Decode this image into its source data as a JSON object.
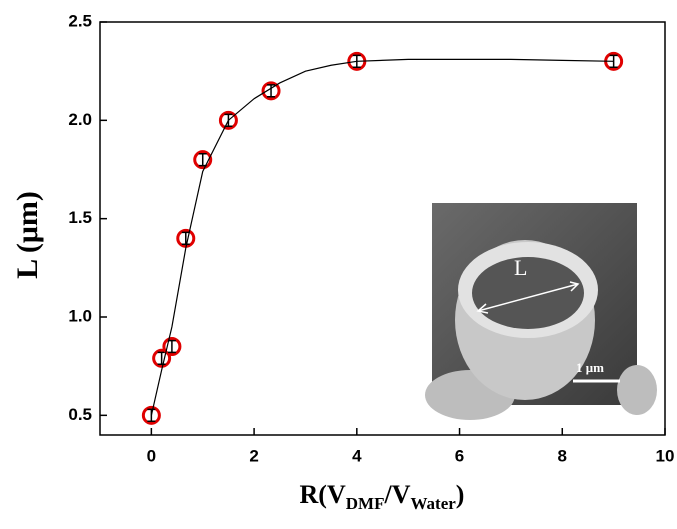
{
  "chart_data": {
    "type": "scatter",
    "ylabel": "L (μm)",
    "xlabel_parts": [
      {
        "text": "R(V"
      },
      {
        "text": "DMF",
        "sub": true
      },
      {
        "text": "/V"
      },
      {
        "text": "Water",
        "sub": true
      },
      {
        "text": ")"
      }
    ],
    "xlim": [
      -1,
      10
    ],
    "xticks": [
      0,
      2,
      4,
      6,
      8,
      10
    ],
    "ylim": [
      0.4,
      2.5
    ],
    "yticks": [
      {
        "value": 0.5,
        "label": "0.5"
      },
      {
        "value": 1,
        "label": "1.0"
      },
      {
        "value": 1.5,
        "label": "1.5"
      },
      {
        "value": 2,
        "label": "2.0"
      },
      {
        "value": 2.5,
        "label": "2.5"
      }
    ],
    "series": [
      {
        "style": "points",
        "color": "#e00000",
        "x": [
          0,
          0.2,
          0.4,
          0.67,
          1,
          1.5,
          2.33,
          4,
          9
        ],
        "values": [
          0.5,
          0.79,
          0.85,
          1.4,
          1.8,
          2.0,
          2.15,
          2.3,
          2.3
        ],
        "errors": [
          0.03,
          0.03,
          0.03,
          0.03,
          0.03,
          0.03,
          0.03,
          0.03,
          0.03
        ]
      },
      {
        "style": "line",
        "color": "#000000",
        "x": [
          0,
          0.2,
          0.4,
          0.67,
          1,
          1.5,
          2,
          2.5,
          3,
          3.5,
          4,
          5,
          6,
          7,
          8,
          9
        ],
        "values": [
          0.5,
          0.73,
          0.95,
          1.35,
          1.74,
          2.0,
          2.11,
          2.19,
          2.25,
          2.28,
          2.3,
          2.31,
          2.31,
          2.31,
          2.305,
          2.3
        ]
      }
    ],
    "inset": {
      "label": "L",
      "scale_bar": "1 μm"
    }
  }
}
